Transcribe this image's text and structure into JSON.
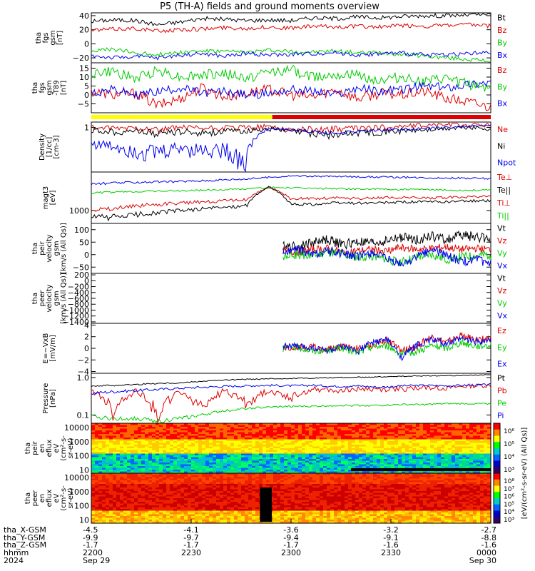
{
  "title": "P5 (TH-A) fields and ground moments overview",
  "colors": {
    "black": "#000000",
    "red": "#dd0000",
    "green": "#00cc00",
    "blue": "#0000ee",
    "yellow": "#ffff00",
    "bar_red": "#dd0000"
  },
  "time_axis": {
    "row_labels": [
      "tha_X-GSM",
      "tha_Y-GSM",
      "tha_Z-GSM",
      "hhmm",
      "2024"
    ],
    "ticks": [
      {
        "x_val": "-4.5",
        "y_val": "-9.9",
        "z_val": "-1.7",
        "hhmm": "2200",
        "date": "Sep 29"
      },
      {
        "x_val": "-4.1",
        "y_val": "-9.7",
        "z_val": "-1.7",
        "hhmm": "2230",
        "date": ""
      },
      {
        "x_val": "-3.6",
        "y_val": "-9.4",
        "z_val": "-1.7",
        "hhmm": "2300",
        "date": ""
      },
      {
        "x_val": "-3.2",
        "y_val": "-9.1",
        "z_val": "-1.6",
        "hhmm": "2330",
        "date": ""
      },
      {
        "x_val": "-2.7",
        "y_val": "-8.8",
        "z_val": "-1.6",
        "hhmm": "0000",
        "date": "Sep 30"
      }
    ],
    "range_min": [
      0,
      120
    ]
  },
  "colorbar_label": "[eV/(cm²-s-sr-eV) (All Qs)]",
  "chart_data": [
    {
      "type": "line",
      "id": "fgs_gsm",
      "ylabel": [
        "tha",
        "fgs",
        "gsm",
        "[nT]"
      ],
      "ylim": [
        -27,
        44
      ],
      "yticks": [
        "40",
        "20",
        "0",
        "−20"
      ],
      "ytick_vals": [
        40,
        20,
        0,
        -20
      ],
      "legend": [
        {
          "label": "Bt",
          "color": "black"
        },
        {
          "label": "Bz",
          "color": "red"
        },
        {
          "label": "By",
          "color": "green"
        },
        {
          "label": "Bx",
          "color": "blue"
        }
      ],
      "series": [
        {
          "name": "Bt",
          "color": "black",
          "base": [
            32,
            34,
            33,
            27,
            31,
            36,
            35,
            33,
            34,
            33,
            37,
            36,
            38,
            37,
            39,
            40,
            40,
            41,
            42
          ],
          "amp": 3
        },
        {
          "name": "Bz",
          "color": "red",
          "base": [
            19,
            21,
            22,
            18,
            20,
            21,
            23,
            22,
            24,
            22,
            25,
            24,
            25,
            24,
            26,
            25,
            26,
            27,
            25
          ],
          "amp": 3
        },
        {
          "name": "By",
          "color": "green",
          "base": [
            -10,
            -8,
            -13,
            -15,
            -12,
            -10,
            -11,
            -12,
            -9,
            -11,
            -12,
            -10,
            -13,
            -12,
            -15,
            -17,
            -20,
            -22,
            -25
          ],
          "amp": 3
        },
        {
          "name": "Bx",
          "color": "blue",
          "base": [
            -17,
            -20,
            -18,
            -20,
            -16,
            -14,
            -18,
            -13,
            -16,
            -15,
            -14,
            -12,
            -16,
            -14,
            -13,
            -16,
            -15,
            -14,
            -13
          ],
          "amp": 3
        }
      ]
    },
    {
      "type": "line",
      "id": "fgs_gse_dev",
      "ylabel": [
        "tha",
        "fgs",
        "gsm",
        "-T89",
        "[nT]"
      ],
      "ylim": [
        -10,
        18
      ],
      "yticks": [
        "15",
        "10",
        "5",
        "0",
        "−5"
      ],
      "ytick_vals": [
        15,
        10,
        5,
        0,
        -5
      ],
      "legend": [
        {
          "label": "Bz",
          "color": "red"
        },
        {
          "label": "By",
          "color": "green"
        },
        {
          "label": "Bx",
          "color": "blue"
        }
      ],
      "series": [
        {
          "name": "Bz",
          "color": "red",
          "base": [
            2,
            0,
            1,
            -6,
            -2,
            4,
            -1,
            1,
            3,
            0,
            -1,
            3,
            -2,
            1,
            0,
            2,
            -2,
            -4,
            -7
          ],
          "amp": 3
        },
        {
          "name": "By",
          "color": "green",
          "base": [
            12,
            13,
            9,
            14,
            10,
            11,
            12,
            9,
            13,
            14,
            10,
            12,
            11,
            8,
            10,
            7,
            9,
            6,
            4
          ],
          "amp": 3
        },
        {
          "name": "Bx",
          "color": "blue",
          "base": [
            1,
            3,
            0,
            2,
            4,
            1,
            2,
            0,
            1,
            3,
            2,
            0,
            4,
            2,
            3,
            5,
            4,
            6,
            7
          ],
          "amp": 2.5
        }
      ]
    },
    {
      "type": "bar_segments",
      "id": "mode_bar",
      "segments": [
        {
          "from": 0,
          "to": 0.453,
          "color": "yellow"
        },
        {
          "from": 0.453,
          "to": 1,
          "color": "bar_red"
        }
      ]
    },
    {
      "type": "line",
      "id": "density",
      "log": true,
      "ylabel": [
        "Density",
        "[1/cc]",
        "[cm-3]"
      ],
      "ylim": [
        0.02,
        1.6
      ],
      "yticks": [
        "1"
      ],
      "ytick_vals": [
        1
      ],
      "legend": [
        {
          "label": "Ne",
          "color": "red"
        },
        {
          "label": "Ni",
          "color": "black"
        },
        {
          "label": "Npot",
          "color": "blue"
        }
      ],
      "series": [
        {
          "name": "Ne",
          "color": "red",
          "base": [
            1.0,
            0.9,
            1.0,
            0.8,
            1.0,
            0.9,
            0.95,
            1.0,
            1.1,
            0.8,
            0.85,
            0.9,
            0.95,
            1.0,
            1.1,
            1.2,
            1.3,
            1.2,
            1.3
          ],
          "amp": 0.25
        },
        {
          "name": "Ni",
          "color": "black",
          "base": [
            0.8,
            0.7,
            0.75,
            0.6,
            0.7,
            0.65,
            0.7,
            0.75,
            0.9,
            0.7,
            0.6,
            0.5,
            0.65,
            0.7,
            0.75,
            0.8,
            0.9,
            1.0,
            0.9
          ],
          "amp": 0.2
        },
        {
          "name": "Npot",
          "color": "blue",
          "base": [
            0.25,
            0.2,
            0.15,
            0.12,
            0.18,
            0.15,
            0.16,
            0.06,
            0.9,
            0.8,
            0.7,
            0.6,
            0.7,
            0.8,
            0.85,
            0.9,
            1.0,
            1.1,
            1.2
          ],
          "amp": 0.1
        }
      ]
    },
    {
      "type": "line",
      "id": "temperature",
      "log": true,
      "ylabel": [
        "magt3",
        "[eV]"
      ],
      "ylim": [
        500,
        8000
      ],
      "yticks": [
        "1000"
      ],
      "ytick_vals": [
        1000
      ],
      "legend": [
        {
          "label": "Te⊥",
          "color": "red"
        },
        {
          "label": "Te||",
          "color": "black"
        },
        {
          "label": "Ti⊥",
          "color": "red"
        },
        {
          "label": "Ti||",
          "color": "green"
        }
      ],
      "series": [
        {
          "name": "Tpar_top",
          "color": "blue",
          "base": [
            4200,
            4400,
            4600,
            4700,
            4800,
            5000,
            5300,
            5500,
            6000,
            6500,
            6400,
            6300,
            6200,
            6100,
            6000,
            5900,
            5800,
            5700,
            5600
          ],
          "amp": 300
        },
        {
          "name": "Tperp_green",
          "color": "green",
          "base": [
            2600,
            2700,
            2800,
            2900,
            2900,
            3000,
            3100,
            3200,
            3500,
            3400,
            3300,
            3300,
            3200,
            3200,
            3100,
            3100,
            3000,
            3000,
            3000
          ],
          "amp": 150
        },
        {
          "name": "Ti_perp",
          "color": "red",
          "base": [
            1100,
            1100,
            1300,
            1400,
            1500,
            1600,
            1700,
            1800,
            3500,
            1900,
            1900,
            2000,
            1900,
            2000,
            2000,
            2000,
            2000,
            2100,
            2100
          ],
          "amp": 150
        },
        {
          "name": "Ti_par",
          "color": "black",
          "base": [
            700,
            700,
            800,
            900,
            1000,
            1100,
            1200,
            1300,
            3600,
            1400,
            1400,
            1500,
            1500,
            1500,
            1600,
            1600,
            1600,
            1700,
            1700
          ],
          "amp": 120
        }
      ]
    },
    {
      "type": "line",
      "id": "peir_velocity",
      "ylabel": [
        "tha",
        "peir",
        "velocity",
        "gsm",
        "[km/s (All Qs)]"
      ],
      "ylim": [
        -75,
        125
      ],
      "yticks": [
        "100",
        "50",
        "0",
        "−50"
      ],
      "ytick_vals": [
        100,
        50,
        0,
        -50
      ],
      "start_frac": 0.48,
      "legend": [
        {
          "label": "Vt",
          "color": "black"
        },
        {
          "label": "Vz",
          "color": "red"
        },
        {
          "label": "Vy",
          "color": "green"
        },
        {
          "label": "Vx",
          "color": "blue"
        }
      ],
      "series": [
        {
          "name": "Vt",
          "color": "black",
          "base": [
            40,
            30,
            50,
            60,
            40,
            50,
            45,
            55,
            70,
            60,
            75,
            60,
            80,
            70,
            65
          ],
          "amp": 20
        },
        {
          "name": "Vz",
          "color": "red",
          "base": [
            15,
            10,
            20,
            25,
            10,
            15,
            20,
            15,
            30,
            20,
            25,
            30,
            20,
            25,
            20
          ],
          "amp": 15
        },
        {
          "name": "Vy",
          "color": "green",
          "base": [
            -10,
            0,
            -5,
            10,
            0,
            -10,
            -5,
            -20,
            -30,
            -10,
            0,
            -20,
            -10,
            -5,
            0
          ],
          "amp": 18
        },
        {
          "name": "Vx",
          "color": "blue",
          "base": [
            10,
            20,
            0,
            15,
            5,
            -10,
            10,
            -20,
            -40,
            -10,
            20,
            0,
            -30,
            -20,
            -40
          ],
          "amp": 18
        }
      ]
    },
    {
      "type": "line",
      "id": "peer_velocity",
      "ylabel": [
        "tha",
        "peer",
        "velocity",
        "gsm",
        "[km/s (All Qs)]"
      ],
      "ylim": [
        -1450,
        250
      ],
      "yticks": [
        "200",
        "0",
        "−200",
        "−400",
        "−600",
        "−800",
        "−1000",
        "−1200",
        "−1400"
      ],
      "ytick_vals": [
        200,
        0,
        -200,
        -400,
        -600,
        -800,
        -1000,
        -1200,
        -1400
      ],
      "legend": [
        {
          "label": "Vt",
          "color": "black"
        },
        {
          "label": "Vz",
          "color": "red"
        },
        {
          "label": "Vy",
          "color": "green"
        },
        {
          "label": "Vx",
          "color": "blue"
        }
      ],
      "series": []
    },
    {
      "type": "line",
      "id": "efield",
      "ylabel": [
        "E=−VxB",
        "[mV/m]"
      ],
      "ylim": [
        -4.3,
        4.3
      ],
      "yticks": [
        "4",
        "2",
        "0",
        "−2",
        "−4"
      ],
      "ytick_vals": [
        4,
        2,
        0,
        -2,
        -4
      ],
      "start_frac": 0.48,
      "legend": [
        {
          "label": "Ez",
          "color": "red"
        },
        {
          "label": "Ey",
          "color": "green"
        },
        {
          "label": "Ex",
          "color": "blue"
        }
      ],
      "series": [
        {
          "name": "Ez",
          "color": "red",
          "base": [
            0,
            0.3,
            0.2,
            -0.3,
            0.4,
            0,
            0.5,
            1.5,
            -0.5,
            0.3,
            2,
            1,
            2.2,
            1.5,
            1.8
          ],
          "amp": 0.6
        },
        {
          "name": "Ey",
          "color": "green",
          "base": [
            0,
            0.2,
            -0.5,
            -0.3,
            0,
            -0.8,
            0.3,
            0.5,
            -1,
            -0.6,
            0.5,
            0,
            1,
            0.4,
            0.6
          ],
          "amp": 0.6
        },
        {
          "name": "Ex",
          "color": "blue",
          "base": [
            0.5,
            0.3,
            0.1,
            -0.4,
            0.2,
            -0.5,
            1,
            1.5,
            -1.5,
            0.5,
            1.5,
            0.8,
            1.6,
            1.2,
            1.4
          ],
          "amp": 0.6
        }
      ]
    },
    {
      "type": "line",
      "id": "pressure",
      "log": true,
      "ylabel": [
        "Pressure",
        "[nPa]"
      ],
      "ylim": [
        0.06,
        1.3
      ],
      "yticks": [
        "1.0",
        "0.1"
      ],
      "ytick_vals": [
        1.0,
        0.1
      ],
      "legend": [
        {
          "label": "Pt",
          "color": "black"
        },
        {
          "label": "Pb",
          "color": "red"
        },
        {
          "label": "Pe",
          "color": "green"
        },
        {
          "label": "Pi",
          "color": "blue"
        }
      ],
      "series": [
        {
          "name": "Pt",
          "color": "black",
          "base": [
            0.6,
            0.62,
            0.65,
            0.7,
            0.72,
            0.8,
            0.85,
            0.9,
            0.92,
            0.95,
            0.97,
            1.0,
            1.02,
            1.05,
            1.08,
            1.1,
            1.12,
            1.15,
            1.2
          ],
          "amp": 0.03
        },
        {
          "name": "Pb",
          "color": "red",
          "base": [
            0.45,
            0.12,
            0.45,
            0.1,
            0.4,
            0.15,
            0.45,
            0.2,
            0.45,
            0.3,
            0.5,
            0.45,
            0.5,
            0.48,
            0.5,
            0.55,
            0.52,
            0.6,
            0.62
          ],
          "amp": 0.08
        },
        {
          "name": "Pe",
          "color": "green",
          "base": [
            0.09,
            0.08,
            0.08,
            0.07,
            0.08,
            0.1,
            0.13,
            0.15,
            0.16,
            0.17,
            0.17,
            0.18,
            0.18,
            0.18,
            0.19,
            0.19,
            0.2,
            0.2,
            0.2
          ],
          "amp": 0.01
        },
        {
          "name": "Pi",
          "color": "blue",
          "base": [
            0.38,
            0.42,
            0.45,
            0.48,
            0.52,
            0.55,
            0.58,
            0.6,
            0.62,
            0.6,
            0.62,
            0.58,
            0.6,
            0.55,
            0.6,
            0.62,
            0.6,
            0.62,
            0.65
          ],
          "amp": 0.04
        }
      ]
    },
    {
      "type": "heatmap",
      "id": "peir_spec",
      "ylabel": [
        "tha",
        "peir",
        "en",
        "eflux",
        "eV",
        "(cm²-s-",
        "sr-eV)"
      ],
      "log": true,
      "ylim": [
        6,
        20000
      ],
      "yticks": [
        "10000",
        "1000",
        "100",
        "10"
      ],
      "ytick_vals": [
        10000,
        1000,
        100,
        10
      ],
      "cbar_ticks": [
        "10⁶",
        "10⁵",
        "10⁴",
        "10³"
      ]
    },
    {
      "type": "heatmap",
      "id": "peer_spec",
      "ylabel": [
        "tha",
        "peer",
        "en",
        "eflux",
        "eV",
        "(cm²-s-",
        "sr-eV)"
      ],
      "log": true,
      "ylim": [
        6,
        20000
      ],
      "yticks": [
        "10000",
        "1000",
        "100",
        "10"
      ],
      "ytick_vals": [
        10000,
        1000,
        100,
        10
      ],
      "cbar_ticks": [
        "10⁸",
        "10⁷",
        "10⁶",
        "10⁵",
        "10⁴",
        "10³"
      ]
    }
  ]
}
